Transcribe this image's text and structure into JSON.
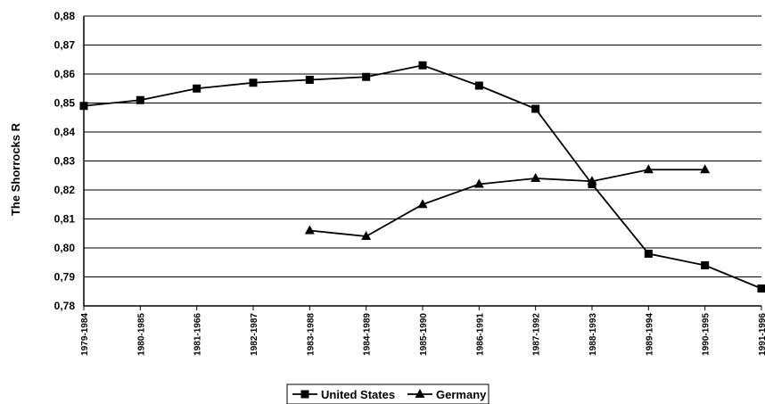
{
  "chart_data": {
    "type": "line",
    "ylabel": "The Shorrocks R",
    "xlabel": "",
    "ylim": [
      0.78,
      0.88
    ],
    "y_ticks": [
      "0,78",
      "0,79",
      "0,80",
      "0,81",
      "0,82",
      "0,83",
      "0,84",
      "0,85",
      "0,86",
      "0,87",
      "0,88"
    ],
    "grid": true,
    "legend_position": "bottom-center",
    "categories": [
      "1979-1984",
      "1980-1985",
      "1981-1966",
      "1982-1987",
      "1983-1988",
      "1984-1989",
      "1985-1990",
      "1986-1991",
      "1987-1992",
      "1988-1993",
      "1989-1994",
      "1990-1995",
      "1991-1996"
    ],
    "series": [
      {
        "name": "United States",
        "marker": "square",
        "color": "#000000",
        "values": [
          0.849,
          0.851,
          0.855,
          0.857,
          0.858,
          0.859,
          0.863,
          0.856,
          0.848,
          0.822,
          0.798,
          0.794,
          0.786
        ]
      },
      {
        "name": "Germany",
        "marker": "triangle",
        "color": "#000000",
        "values": [
          null,
          null,
          null,
          null,
          0.806,
          0.804,
          0.815,
          0.822,
          0.824,
          0.823,
          0.827,
          0.827,
          null
        ]
      }
    ]
  }
}
